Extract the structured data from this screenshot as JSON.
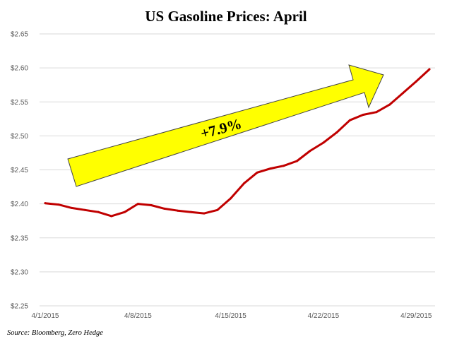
{
  "chart_data": {
    "type": "line",
    "title": "US Gasoline Prices: April",
    "x": [
      "4/1/2015",
      "4/2/2015",
      "4/3/2015",
      "4/4/2015",
      "4/5/2015",
      "4/6/2015",
      "4/7/2015",
      "4/8/2015",
      "4/9/2015",
      "4/10/2015",
      "4/11/2015",
      "4/12/2015",
      "4/13/2015",
      "4/14/2015",
      "4/15/2015",
      "4/16/2015",
      "4/17/2015",
      "4/18/2015",
      "4/19/2015",
      "4/20/2015",
      "4/21/2015",
      "4/22/2015",
      "4/23/2015",
      "4/24/2015",
      "4/25/2015",
      "4/26/2015",
      "4/27/2015",
      "4/28/2015",
      "4/29/2015",
      "4/30/2015"
    ],
    "series": [
      {
        "values": [
          2.401,
          2.399,
          2.394,
          2.391,
          2.388,
          2.382,
          2.388,
          2.4,
          2.398,
          2.393,
          2.39,
          2.388,
          2.386,
          2.391,
          2.408,
          2.43,
          2.446,
          2.452,
          2.456,
          2.463,
          2.478,
          2.49,
          2.505,
          2.523,
          2.531,
          2.535,
          2.546,
          2.563,
          2.58,
          2.598
        ],
        "color": "#c00000"
      }
    ],
    "x_tick_labels": [
      "4/1/2015",
      "4/8/2015",
      "4/15/2015",
      "4/22/2015",
      "4/29/2015"
    ],
    "y_tick_labels": [
      "$2.25",
      "$2.30",
      "$2.35",
      "$2.40",
      "$2.45",
      "$2.50",
      "$2.55",
      "$2.60",
      "$2.65"
    ],
    "ylim": [
      2.25,
      2.65
    ],
    "grid": true,
    "annotation": {
      "text": "+7.9%",
      "fill": "#ffff00"
    },
    "source": "Source: Bloomberg, Zero Hedge"
  }
}
